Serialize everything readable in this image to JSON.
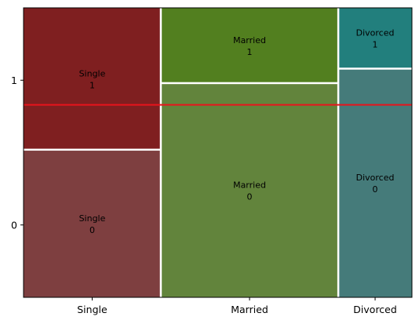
{
  "chart_data": {
    "type": "mosaic",
    "title": "",
    "xlabel": "",
    "ylabel": "",
    "categories": [
      "Single",
      "Married",
      "Divorced"
    ],
    "levels": [
      "0",
      "1"
    ],
    "ylim": [
      -0.5,
      1.5
    ],
    "x_widths": [
      0.41,
      0.53,
      0.22
    ],
    "proportions": [
      {
        "category": "Single",
        "0": 0.51,
        "1": 0.49,
        "labels": {
          "0": [
            "Single",
            "0"
          ],
          "1": [
            "Single",
            "1"
          ]
        }
      },
      {
        "category": "Married",
        "0": 0.74,
        "1": 0.26,
        "labels": {
          "0": [
            "Married",
            "0"
          ],
          "1": [
            "Married",
            "1"
          ]
        }
      },
      {
        "category": "Divorced",
        "0": 0.79,
        "1": 0.21,
        "labels": {
          "0": [
            "Divorced",
            "0"
          ],
          "1": [
            "Divorced",
            "1"
          ]
        }
      }
    ],
    "yticks": [
      0,
      1
    ],
    "ytick_labels": [
      "0",
      "1"
    ],
    "reference_line": {
      "y": 0.83,
      "color": "#e8141c"
    },
    "colors": {
      "Single": {
        "0": "#7e3f40",
        "1": "#7f1f20"
      },
      "Married": {
        "0": "#62843c",
        "1": "#527f1f"
      },
      "Divorced": {
        "0": "#457b7a",
        "1": "#227f7d"
      }
    },
    "grid": false,
    "legend": "none"
  }
}
